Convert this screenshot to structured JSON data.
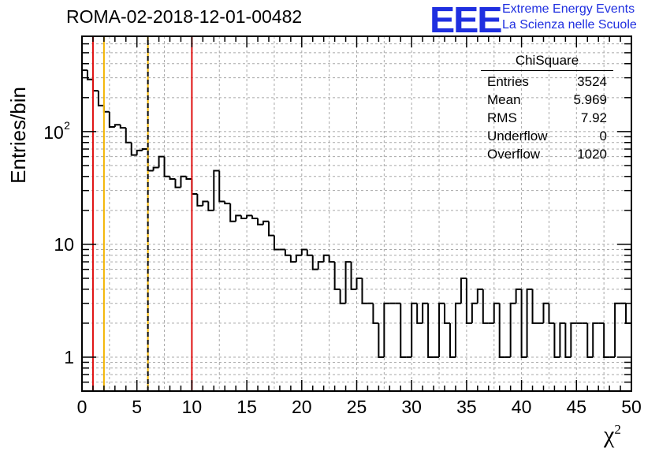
{
  "title": "ROMA-02-2018-12-01-00482",
  "logo": {
    "mark": "EEE",
    "line1": "Extreme Energy Events",
    "line2": "La Scienza nelle Scuole",
    "color": "#1f2fe0"
  },
  "stats": {
    "title": "ChiSquare",
    "rows": [
      {
        "label": "Entries",
        "value": "3524"
      },
      {
        "label": "Mean",
        "value": "5.969"
      },
      {
        "label": "RMS",
        "value": "7.92"
      },
      {
        "label": "Underflow",
        "value": "0"
      },
      {
        "label": "Overflow",
        "value": "1020"
      }
    ]
  },
  "chart_data": {
    "type": "histogram",
    "xlabel": "χ",
    "xlabel_sup": "2",
    "ylabel": "Entries/bin",
    "xlim": [
      0,
      50
    ],
    "ylim": [
      0.5,
      700
    ],
    "yscale": "log",
    "grid": true,
    "bin_width": 0.5,
    "x_ticks": [
      0,
      5,
      10,
      15,
      20,
      25,
      30,
      35,
      40,
      45,
      50
    ],
    "y_ticks": [
      {
        "value": 1,
        "label": "1"
      },
      {
        "value": 10,
        "label": "10"
      },
      {
        "value": 100,
        "label": "10",
        "sup": "2"
      }
    ],
    "bin_counts": [
      350,
      290,
      230,
      170,
      150,
      110,
      115,
      108,
      80,
      62,
      68,
      70,
      45,
      48,
      60,
      40,
      38,
      32,
      40,
      38,
      28,
      22,
      24,
      20,
      45,
      24,
      23,
      16,
      18,
      17,
      18,
      17,
      15,
      16,
      12,
      9,
      9,
      8,
      7,
      8,
      9,
      8,
      6,
      7,
      8,
      7,
      4,
      3,
      7,
      4,
      5,
      3,
      3,
      2,
      1,
      3,
      3,
      3,
      1,
      1,
      3,
      2,
      3,
      1,
      1,
      3,
      2,
      1,
      3,
      5,
      2,
      3,
      4,
      2,
      2,
      3,
      1,
      1,
      3,
      4,
      1,
      4,
      2,
      2,
      3,
      2,
      1,
      2,
      1,
      2,
      2,
      2,
      1,
      2,
      2,
      1,
      1,
      3,
      3,
      2
    ],
    "vertical_lines": [
      {
        "x": 1,
        "style": "solid",
        "color": "#e01010"
      },
      {
        "x": 2,
        "style": "solid",
        "color": "#f2b400"
      },
      {
        "x": 6,
        "style": "dashed",
        "color": "#f2b400"
      },
      {
        "x": 10,
        "style": "solid",
        "color": "#e01010"
      }
    ]
  }
}
